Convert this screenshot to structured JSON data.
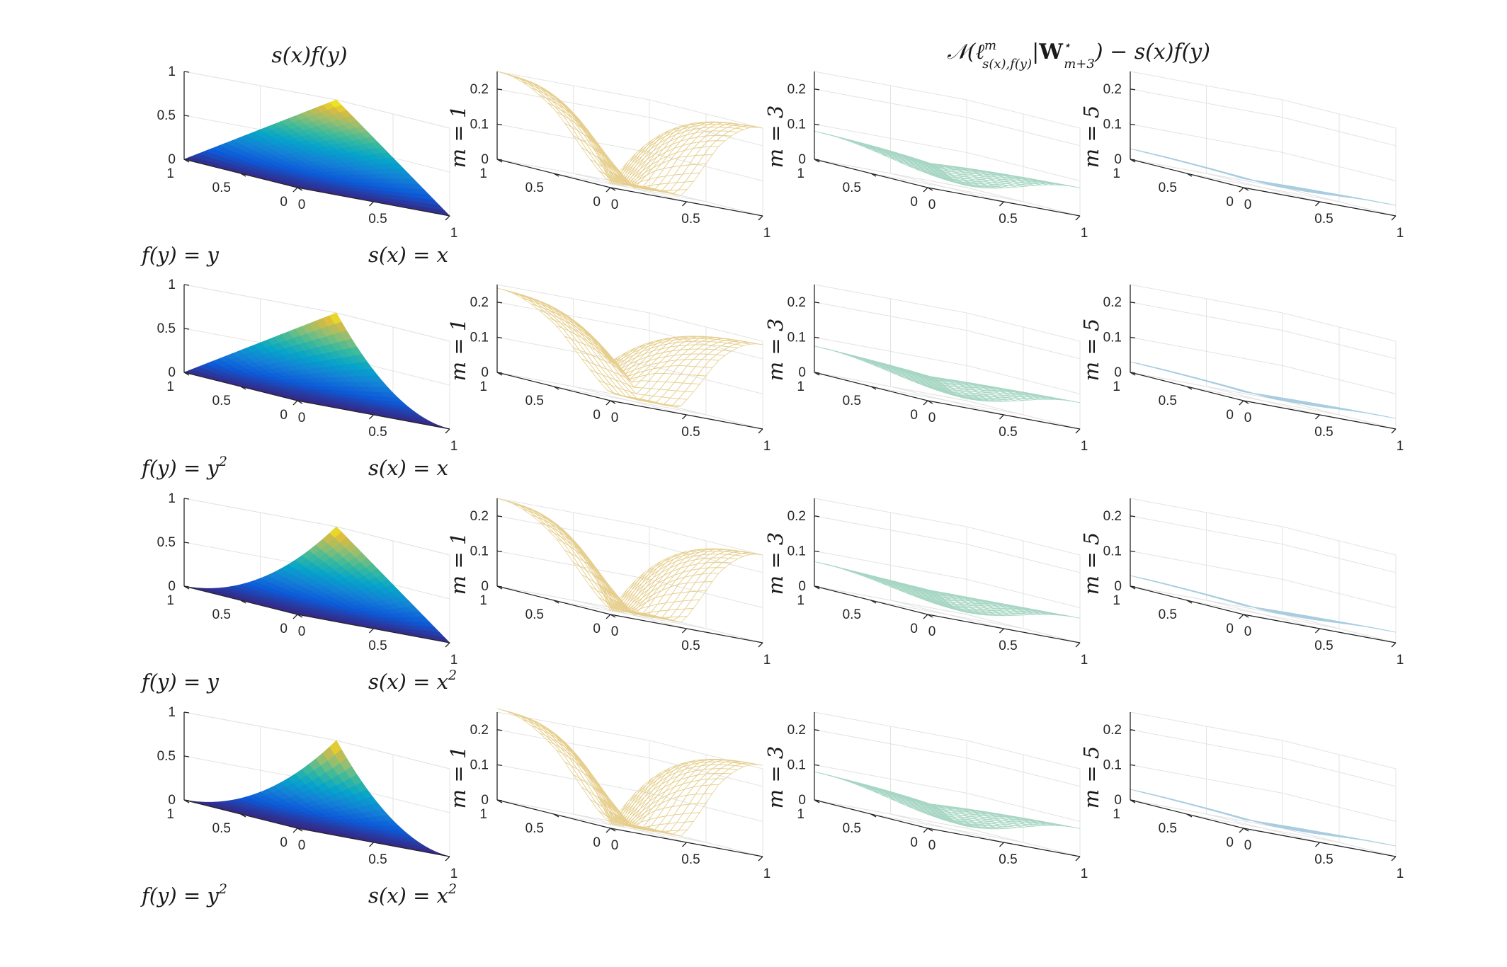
{
  "figure": {
    "left_title_parts": [
      "s(x)f(y)"
    ],
    "right_title_parts": [
      "𝒩(ℓ",
      "m",
      "s(x),f(y)",
      "|",
      "W",
      "⋆",
      "m+3",
      ") − s(x)f(y)"
    ]
  },
  "chart_data": [
    {
      "type": "surface",
      "row": 1,
      "column": "s(x)f(y)",
      "function": "s(x)f(y)",
      "s_label": "s(x) = x",
      "f_label": "f(y) = y",
      "s_exponent": 1,
      "f_exponent": 1,
      "zlim": [
        0,
        1
      ],
      "z_ticks": [
        "0",
        "0.5",
        "1"
      ],
      "x_ticks": [
        "0",
        "0.5",
        "1"
      ],
      "y_ticks": [
        "0",
        "0.5",
        "1"
      ],
      "colormap": "parula"
    },
    {
      "type": "surface",
      "row": 1,
      "column": "m = 1",
      "m": 1,
      "zlim": [
        0,
        0.25
      ],
      "z_ticks": [
        "0",
        "0.1",
        "0.2"
      ],
      "x_ticks": [
        "0",
        "0.5",
        "1"
      ],
      "y_ticks": [
        "0",
        "0.5",
        "1"
      ],
      "edge_error": 0.24,
      "center_error": 0.0,
      "mesh_color": "#e6cf8e"
    },
    {
      "type": "surface",
      "row": 1,
      "column": "m = 3",
      "m": 3,
      "zlim": [
        0,
        0.25
      ],
      "z_ticks": [
        "0",
        "0.1",
        "0.2"
      ],
      "x_ticks": [
        "0",
        "0.5",
        "1"
      ],
      "y_ticks": [
        "0",
        "0.5",
        "1"
      ],
      "edge_error": 0.07,
      "center_error": 0.06,
      "mesh_color": "#a7d6c4"
    },
    {
      "type": "surface",
      "row": 1,
      "column": "m = 5",
      "m": 5,
      "zlim": [
        0,
        0.25
      ],
      "z_ticks": [
        "0",
        "0.1",
        "0.2"
      ],
      "x_ticks": [
        "0",
        "0.5",
        "1"
      ],
      "y_ticks": [
        "0",
        "0.5",
        "1"
      ],
      "edge_error": 0.02,
      "center_error": 0.015,
      "mesh_color": "#a9cde0"
    },
    {
      "type": "surface",
      "row": 2,
      "column": "s(x)f(y)",
      "function": "s(x)f(y)",
      "s_label": "s(x) = x",
      "f_label": "f(y) = y",
      "f_label_exp": "2",
      "s_exponent": 1,
      "f_exponent": 2,
      "zlim": [
        0,
        1
      ],
      "z_ticks": [
        "0",
        "0.5",
        "1"
      ],
      "x_ticks": [
        "0",
        "0.5",
        "1"
      ],
      "y_ticks": [
        "0",
        "0.5",
        "1"
      ],
      "colormap": "parula"
    },
    {
      "type": "surface",
      "row": 2,
      "column": "m = 1",
      "m": 1,
      "zlim": [
        0,
        0.25
      ],
      "z_ticks": [
        "0",
        "0.1",
        "0.2"
      ],
      "x_ticks": [
        "0",
        "0.5",
        "1"
      ],
      "y_ticks": [
        "0",
        "0.5",
        "1"
      ],
      "edge_error": 0.23,
      "center_error": 0.1,
      "mesh_color": "#e6cf8e"
    },
    {
      "type": "surface",
      "row": 2,
      "column": "m = 3",
      "m": 3,
      "zlim": [
        0,
        0.25
      ],
      "z_ticks": [
        "0",
        "0.1",
        "0.2"
      ],
      "x_ticks": [
        "0",
        "0.5",
        "1"
      ],
      "y_ticks": [
        "0",
        "0.5",
        "1"
      ],
      "edge_error": 0.065,
      "center_error": 0.06,
      "mesh_color": "#a7d6c4"
    },
    {
      "type": "surface",
      "row": 2,
      "column": "m = 5",
      "m": 5,
      "zlim": [
        0,
        0.25
      ],
      "z_ticks": [
        "0",
        "0.1",
        "0.2"
      ],
      "x_ticks": [
        "0",
        "0.5",
        "1"
      ],
      "y_ticks": [
        "0",
        "0.5",
        "1"
      ],
      "edge_error": 0.02,
      "center_error": 0.015,
      "mesh_color": "#a9cde0"
    },
    {
      "type": "surface",
      "row": 3,
      "column": "s(x)f(y)",
      "function": "s(x)f(y)",
      "s_label": "s(x) = x",
      "s_label_exp": "2",
      "f_label": "f(y) = y",
      "s_exponent": 2,
      "f_exponent": 1,
      "zlim": [
        0,
        1
      ],
      "z_ticks": [
        "0",
        "0.5",
        "1"
      ],
      "x_ticks": [
        "0",
        "0.5",
        "1"
      ],
      "y_ticks": [
        "0",
        "0.5",
        "1"
      ],
      "colormap": "parula"
    },
    {
      "type": "surface",
      "row": 3,
      "column": "m = 1",
      "m": 1,
      "zlim": [
        0,
        0.25
      ],
      "z_ticks": [
        "0",
        "0.1",
        "0.2"
      ],
      "x_ticks": [
        "0",
        "0.5",
        "1"
      ],
      "y_ticks": [
        "0",
        "0.5",
        "1"
      ],
      "edge_error": 0.24,
      "center_error": 0.0,
      "mesh_color": "#e6cf8e"
    },
    {
      "type": "surface",
      "row": 3,
      "column": "m = 3",
      "m": 3,
      "zlim": [
        0,
        0.25
      ],
      "z_ticks": [
        "0",
        "0.1",
        "0.2"
      ],
      "x_ticks": [
        "0",
        "0.5",
        "1"
      ],
      "y_ticks": [
        "0",
        "0.5",
        "1"
      ],
      "edge_error": 0.06,
      "center_error": 0.06,
      "mesh_color": "#a7d6c4"
    },
    {
      "type": "surface",
      "row": 3,
      "column": "m = 5",
      "m": 5,
      "zlim": [
        0,
        0.25
      ],
      "z_ticks": [
        "0",
        "0.1",
        "0.2"
      ],
      "x_ticks": [
        "0",
        "0.5",
        "1"
      ],
      "y_ticks": [
        "0",
        "0.5",
        "1"
      ],
      "edge_error": 0.02,
      "center_error": 0.015,
      "mesh_color": "#a9cde0"
    },
    {
      "type": "surface",
      "row": 4,
      "column": "s(x)f(y)",
      "function": "s(x)f(y)",
      "s_label": "s(x) = x",
      "s_label_exp": "2",
      "f_label": "f(y) = y",
      "f_label_exp": "2",
      "s_exponent": 2,
      "f_exponent": 2,
      "zlim": [
        0,
        1
      ],
      "z_ticks": [
        "0",
        "0.5",
        "1"
      ],
      "x_ticks": [
        "0",
        "0.5",
        "1"
      ],
      "y_ticks": [
        "0",
        "0.5",
        "1"
      ],
      "colormap": "parula"
    },
    {
      "type": "surface",
      "row": 4,
      "column": "m = 1",
      "m": 1,
      "zlim": [
        0,
        0.25
      ],
      "z_ticks": [
        "0",
        "0.1",
        "0.2"
      ],
      "x_ticks": [
        "0",
        "0.5",
        "1"
      ],
      "y_ticks": [
        "0",
        "0.5",
        "1"
      ],
      "edge_error": 0.25,
      "center_error": 0.0,
      "mesh_color": "#e6cf8e"
    },
    {
      "type": "surface",
      "row": 4,
      "column": "m = 3",
      "m": 3,
      "zlim": [
        0,
        0.25
      ],
      "z_ticks": [
        "0",
        "0.1",
        "0.2"
      ],
      "x_ticks": [
        "0",
        "0.5",
        "1"
      ],
      "y_ticks": [
        "0",
        "0.5",
        "1"
      ],
      "edge_error": 0.07,
      "center_error": 0.06,
      "mesh_color": "#a7d6c4"
    },
    {
      "type": "surface",
      "row": 4,
      "column": "m = 5",
      "m": 5,
      "zlim": [
        0,
        0.25
      ],
      "z_ticks": [
        "0",
        "0.1",
        "0.2"
      ],
      "x_ticks": [
        "0",
        "0.5",
        "1"
      ],
      "y_ticks": [
        "0",
        "0.5",
        "1"
      ],
      "edge_error": 0.02,
      "center_error": 0.015,
      "mesh_color": "#a9cde0"
    }
  ]
}
